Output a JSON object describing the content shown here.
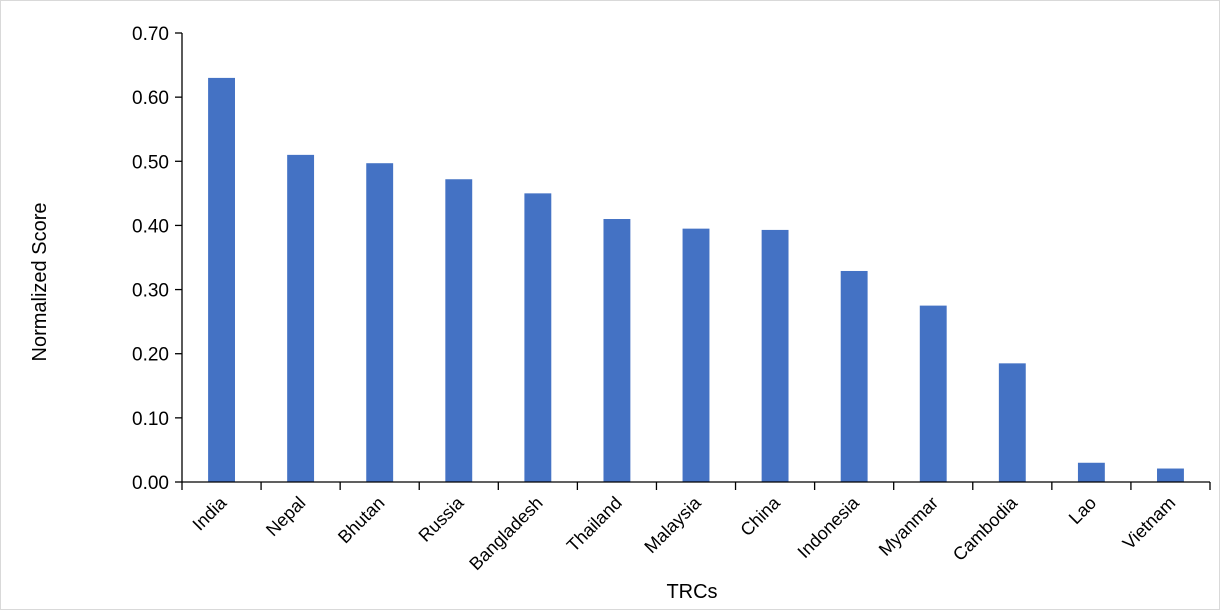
{
  "chart_data": {
    "type": "bar",
    "title": "",
    "xlabel": "TRCs",
    "ylabel": "Normalized Score",
    "categories": [
      "India",
      "Nepal",
      "Bhutan",
      "Russia",
      "Bangladesh",
      "Thailand",
      "Malaysia",
      "China",
      "Indonesia",
      "Myanmar",
      "Cambodia",
      "Lao",
      "Vietnam"
    ],
    "values": [
      0.63,
      0.51,
      0.497,
      0.472,
      0.45,
      0.41,
      0.395,
      0.393,
      0.329,
      0.275,
      0.185,
      0.03,
      0.021
    ],
    "ylim": [
      0,
      0.7
    ],
    "yticks": [
      "0.00",
      "0.10",
      "0.20",
      "0.30",
      "0.40",
      "0.50",
      "0.60",
      "0.70"
    ],
    "grid": false,
    "legend": "none",
    "bar_color": "#4472c4"
  }
}
